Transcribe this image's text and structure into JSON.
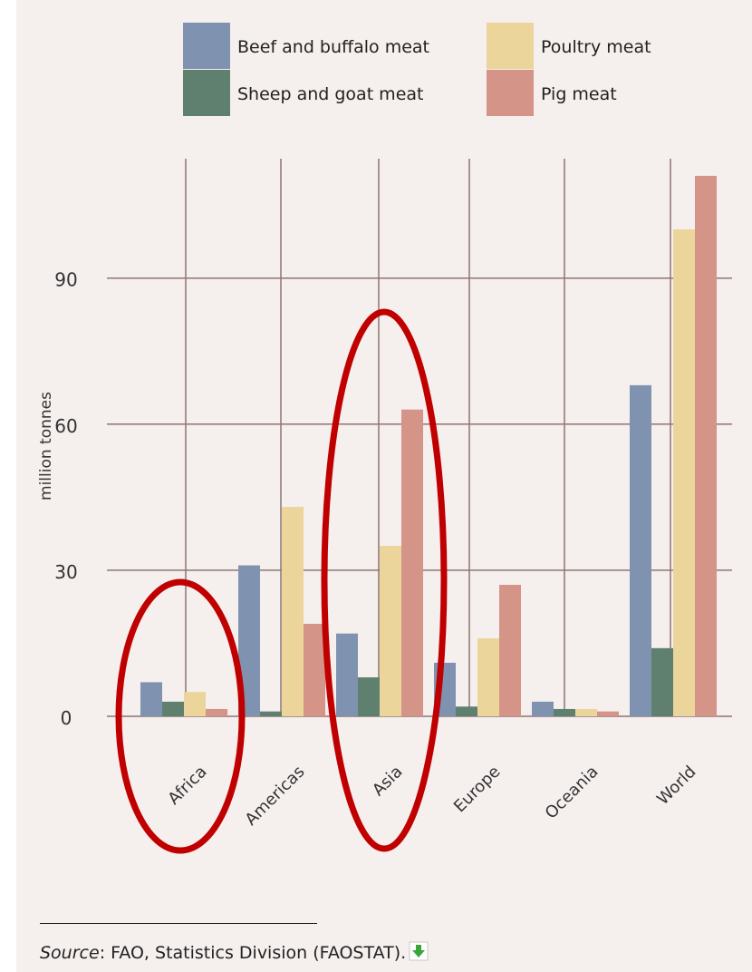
{
  "chart_data": {
    "type": "bar",
    "ylabel": "million tonnes",
    "ylim": [
      0,
      115
    ],
    "yticks": [
      0,
      30,
      60,
      90
    ],
    "categories": [
      "Africa",
      "Americas",
      "Asia",
      "Europe",
      "Oceania",
      "World"
    ],
    "grid": "vertical and horizontal lines",
    "legend_position": "top",
    "series": [
      {
        "name": "Beef and buffalo meat",
        "color": "#7f93b1",
        "values": [
          7,
          31,
          17,
          11,
          3,
          68
        ]
      },
      {
        "name": "Sheep and goat meat",
        "color": "#5f806f",
        "values": [
          3,
          1,
          8,
          2,
          1.5,
          14
        ]
      },
      {
        "name": "Poultry meat",
        "color": "#ebd59a",
        "values": [
          5,
          43,
          35,
          16,
          1.5,
          100
        ]
      },
      {
        "name": "Pig meat",
        "color": "#d49488",
        "values": [
          1.5,
          19,
          63,
          27,
          1,
          111
        ]
      }
    ],
    "annotations": [
      {
        "type": "ellipse",
        "color": "#c00000",
        "target_category": "Africa"
      },
      {
        "type": "ellipse",
        "color": "#c00000",
        "target_category": "Asia"
      }
    ]
  },
  "source": {
    "label": "Source",
    "text": ": FAO, Statistics Division (FAOSTAT).",
    "icon": "download-icon"
  }
}
